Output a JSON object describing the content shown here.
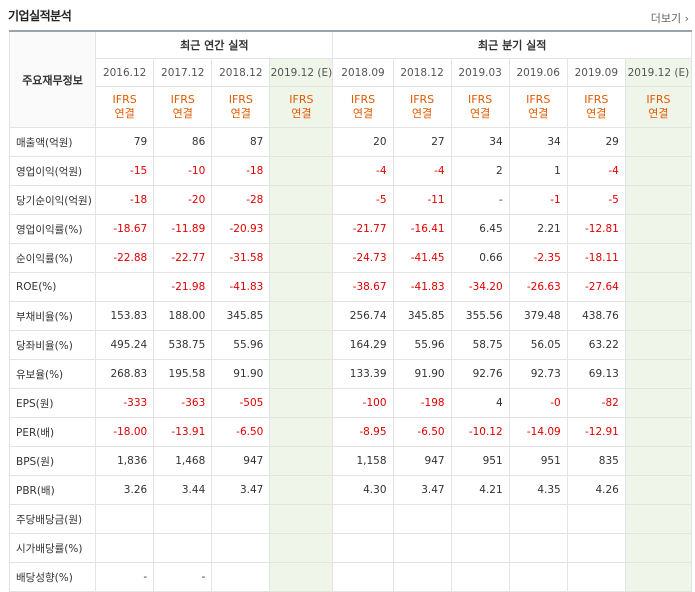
{
  "header": {
    "title": "기업실적분석",
    "more_label": "더보기",
    "more_icon": "›"
  },
  "table": {
    "row_header_label": "주요재무정보",
    "annual_group_label": "최근 연간 실적",
    "quarter_group_label": "최근 분기 실적",
    "annual_periods": [
      "2016.12",
      "2017.12",
      "2018.12",
      "2019.12 (E)"
    ],
    "quarter_periods": [
      "2018.09",
      "2018.12",
      "2019.03",
      "2019.06",
      "2019.09",
      "2019.12 (E)"
    ],
    "type_line1": "IFRS",
    "type_line2": "연결",
    "rows": [
      {
        "label": "매출액(억원)",
        "annual": [
          "79",
          "86",
          "87",
          ""
        ],
        "quarter": [
          "20",
          "27",
          "34",
          "34",
          "29",
          ""
        ]
      },
      {
        "label": "영업이익(억원)",
        "annual": [
          "-15",
          "-10",
          "-18",
          ""
        ],
        "quarter": [
          "-4",
          "-4",
          "2",
          "1",
          "-4",
          ""
        ]
      },
      {
        "label": "당기순이익(억원)",
        "annual": [
          "-18",
          "-20",
          "-28",
          ""
        ],
        "quarter": [
          "-5",
          "-11",
          "-",
          "-1",
          "-5",
          ""
        ]
      },
      {
        "label": "영업이익률(%)",
        "annual": [
          "-18.67",
          "-11.89",
          "-20.93",
          ""
        ],
        "quarter": [
          "-21.77",
          "-16.41",
          "6.45",
          "2.21",
          "-12.81",
          ""
        ]
      },
      {
        "label": "순이익률(%)",
        "annual": [
          "-22.88",
          "-22.77",
          "-31.58",
          ""
        ],
        "quarter": [
          "-24.73",
          "-41.45",
          "0.66",
          "-2.35",
          "-18.11",
          ""
        ]
      },
      {
        "label": "ROE(%)",
        "annual": [
          "",
          "-21.98",
          "-41.83",
          ""
        ],
        "quarter": [
          "-38.67",
          "-41.83",
          "-34.20",
          "-26.63",
          "-27.64",
          ""
        ]
      },
      {
        "label": "부채비율(%)",
        "annual": [
          "153.83",
          "188.00",
          "345.85",
          ""
        ],
        "quarter": [
          "256.74",
          "345.85",
          "355.56",
          "379.48",
          "438.76",
          ""
        ]
      },
      {
        "label": "당좌비율(%)",
        "annual": [
          "495.24",
          "538.75",
          "55.96",
          ""
        ],
        "quarter": [
          "164.29",
          "55.96",
          "58.75",
          "56.05",
          "63.22",
          ""
        ]
      },
      {
        "label": "유보율(%)",
        "annual": [
          "268.83",
          "195.58",
          "91.90",
          ""
        ],
        "quarter": [
          "133.39",
          "91.90",
          "92.76",
          "92.73",
          "69.13",
          ""
        ]
      },
      {
        "label": "EPS(원)",
        "annual": [
          "-333",
          "-363",
          "-505",
          ""
        ],
        "quarter": [
          "-100",
          "-198",
          "4",
          "-0",
          "-82",
          ""
        ]
      },
      {
        "label": "PER(배)",
        "annual": [
          "-18.00",
          "-13.91",
          "-6.50",
          ""
        ],
        "quarter": [
          "-8.95",
          "-6.50",
          "-10.12",
          "-14.09",
          "-12.91",
          ""
        ]
      },
      {
        "label": "BPS(원)",
        "annual": [
          "1,836",
          "1,468",
          "947",
          ""
        ],
        "quarter": [
          "1,158",
          "947",
          "951",
          "951",
          "835",
          ""
        ]
      },
      {
        "label": "PBR(배)",
        "annual": [
          "3.26",
          "3.44",
          "3.47",
          ""
        ],
        "quarter": [
          "4.30",
          "3.47",
          "4.21",
          "4.35",
          "4.26",
          ""
        ]
      },
      {
        "label": "주당배당금(원)",
        "annual": [
          "",
          "",
          "",
          ""
        ],
        "quarter": [
          "",
          "",
          "",
          "",
          "",
          ""
        ]
      },
      {
        "label": "시가배당률(%)",
        "annual": [
          "",
          "",
          "",
          ""
        ],
        "quarter": [
          "",
          "",
          "",
          "",
          "",
          ""
        ]
      },
      {
        "label": "배당성향(%)",
        "annual": [
          "-",
          "-",
          "",
          ""
        ],
        "quarter": [
          "",
          "",
          "",
          "",
          "",
          ""
        ]
      }
    ]
  }
}
